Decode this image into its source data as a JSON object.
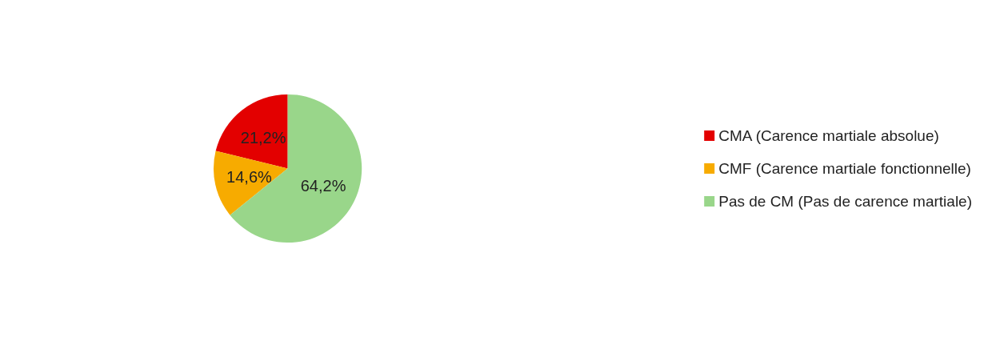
{
  "chart_data": {
    "type": "pie",
    "categories": [
      "CMA (Carence martiale absolue)",
      "CMF (Carence martiale fonctionnelle)",
      "Pas de CM (Pas de carence martiale)"
    ],
    "values": [
      21.2,
      14.6,
      64.2
    ],
    "value_labels": [
      "21,2%",
      "14,6%",
      "64,2%"
    ],
    "colors": [
      "#e30000",
      "#f7ab00",
      "#99d68a"
    ],
    "legend": "right"
  }
}
